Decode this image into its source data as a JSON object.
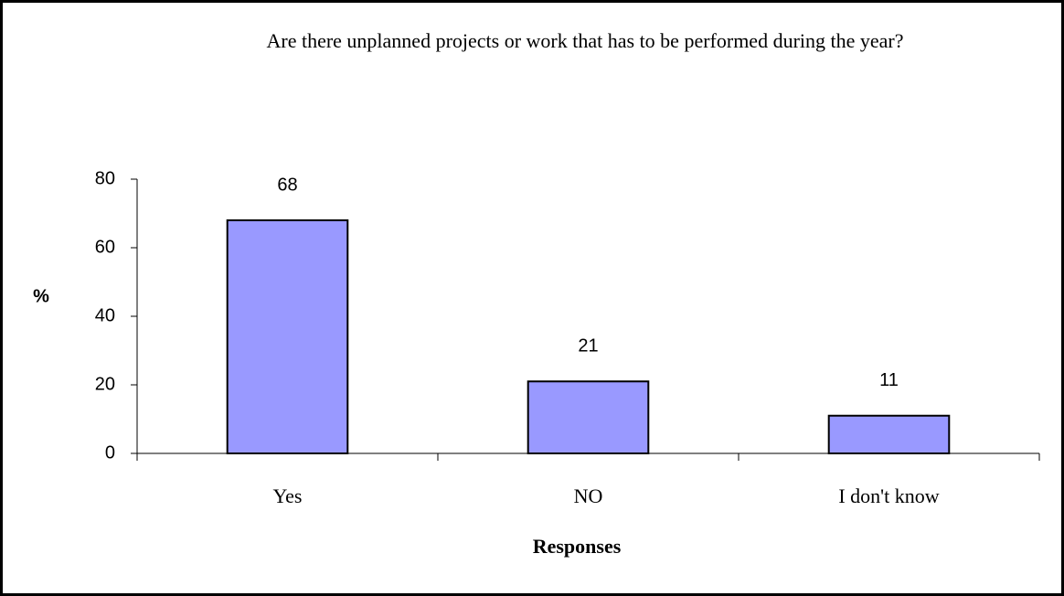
{
  "chart_data": {
    "type": "bar",
    "title": "Are there unplanned projects or work that has to be performed during the year?",
    "x_label": "Responses",
    "y_label": "%",
    "categories": [
      "Yes",
      "NO",
      "I don't know"
    ],
    "values": [
      68,
      21,
      11
    ],
    "color": "#9999ff",
    "ylim": [
      0,
      80
    ],
    "yticks": [
      0,
      20,
      40,
      60,
      80
    ],
    "grid": false
  }
}
